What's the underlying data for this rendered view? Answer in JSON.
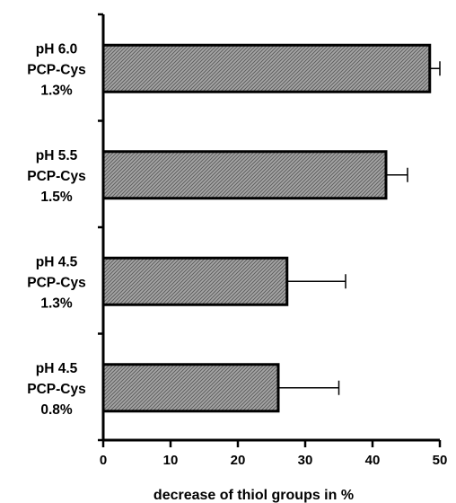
{
  "chart_data": {
    "type": "bar",
    "orientation": "horizontal",
    "categories": [
      [
        "pH 6.0",
        "PCP-Cys",
        "1.3%"
      ],
      [
        "pH 5.5",
        "PCP-Cys",
        "1.5%"
      ],
      [
        "pH 4.5",
        "PCP-Cys",
        "1.3%"
      ],
      [
        "pH 4.5",
        "PCP-Cys",
        "0.8%"
      ]
    ],
    "values": [
      48.5,
      42,
      27.3,
      26
    ],
    "error_high": [
      50,
      45.2,
      36,
      35
    ],
    "xlabel": "decrease of thiol groups in %",
    "xlim": [
      0,
      50
    ],
    "xticks": [
      0,
      10,
      20,
      30,
      40,
      50
    ],
    "grid": false,
    "bar_fill": "hatched gray",
    "colors": {
      "bar_fill": "#9a9a9a",
      "hatch": "#5a5a5a",
      "axis": "#000000"
    }
  }
}
